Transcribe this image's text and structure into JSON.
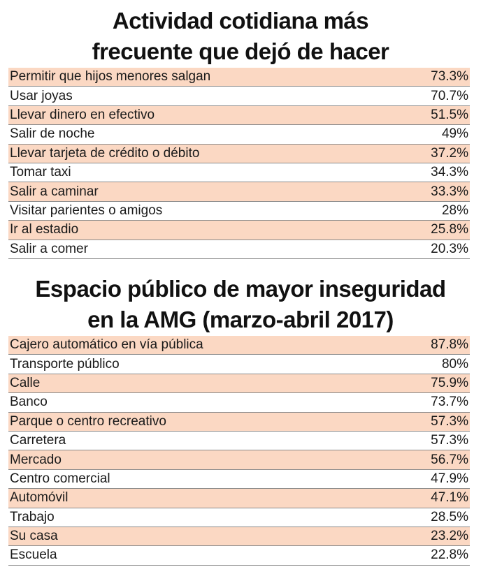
{
  "chart_data": [
    {
      "type": "table",
      "title_lines": [
        "Actividad cotidiana más",
        "frecuente que dejó de hacer"
      ],
      "shade_color": "#fbd8c3",
      "rows": [
        {
          "label": "Permitir que hijos menores salgan",
          "value": "73.3%"
        },
        {
          "label": "Usar joyas",
          "value": "70.7%"
        },
        {
          "label": "Llevar dinero en efectivo",
          "value": "51.5%"
        },
        {
          "label": "Salir de noche",
          "value": "49%"
        },
        {
          "label": "Llevar tarjeta de crédito o débito",
          "value": "37.2%"
        },
        {
          "label": "Tomar taxi",
          "value": "34.3%"
        },
        {
          "label": "Salir a caminar",
          "value": "33.3%"
        },
        {
          "label": "Visitar parientes o amigos",
          "value": "28%"
        },
        {
          "label": "Ir al estadio",
          "value": "25.8%"
        },
        {
          "label": "Salir a comer",
          "value": "20.3%"
        }
      ]
    },
    {
      "type": "table",
      "title_lines": [
        "Espacio público de mayor inseguridad",
        "en la AMG (marzo-abril 2017)"
      ],
      "shade_color": "#fbd8c3",
      "rows": [
        {
          "label": "Cajero automático en vía pública",
          "value": "87.8%"
        },
        {
          "label": "Transporte público",
          "value": "80%"
        },
        {
          "label": "Calle",
          "value": "75.9%"
        },
        {
          "label": "Banco",
          "value": "73.7%"
        },
        {
          "label": "Parque o centro recreativo",
          "value": "57.3%"
        },
        {
          "label": "Carretera",
          "value": "57.3%"
        },
        {
          "label": "Mercado",
          "value": "56.7%"
        },
        {
          "label": "Centro comercial",
          "value": "47.9%"
        },
        {
          "label": "Automóvil",
          "value": "47.1%"
        },
        {
          "label": "Trabajo",
          "value": "28.5%"
        },
        {
          "label": "Su casa",
          "value": "23.2%"
        },
        {
          "label": "Escuela",
          "value": "22.8%"
        }
      ]
    }
  ]
}
